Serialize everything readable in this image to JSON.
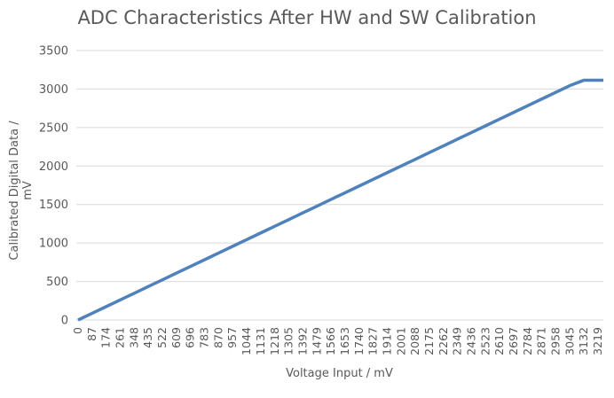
{
  "chart_data": {
    "type": "line",
    "title": "ADC Characteristics After HW and SW Calibration",
    "xlabel": "Voltage Input / mV",
    "ylabel": "Calibrated Digital Data / mV",
    "ylim": [
      0,
      3500
    ],
    "yticks": [
      0,
      500,
      1000,
      1500,
      2000,
      2500,
      3000,
      3500
    ],
    "grid": true,
    "legend": "none",
    "categories": [
      0,
      87,
      174,
      261,
      348,
      435,
      522,
      609,
      696,
      783,
      870,
      957,
      1044,
      1131,
      1218,
      1305,
      1392,
      1479,
      1566,
      1653,
      1740,
      1827,
      1914,
      2001,
      2088,
      2175,
      2262,
      2349,
      2436,
      2523,
      2610,
      2697,
      2784,
      2871,
      2958,
      3045,
      3132,
      3219
    ],
    "series": [
      {
        "name": "Calibrated Digital Data",
        "color": "#4f81bd",
        "values": [
          0,
          87,
          174,
          261,
          348,
          435,
          522,
          609,
          696,
          783,
          870,
          957,
          1044,
          1131,
          1218,
          1305,
          1392,
          1479,
          1566,
          1653,
          1740,
          1827,
          1914,
          2001,
          2088,
          2175,
          2262,
          2349,
          2436,
          2523,
          2610,
          2697,
          2784,
          2871,
          2958,
          3045,
          3115,
          3115
        ]
      }
    ]
  },
  "colors": {
    "line": "#4f81bd",
    "grid": "#d9d9d9",
    "text": "#595959"
  }
}
